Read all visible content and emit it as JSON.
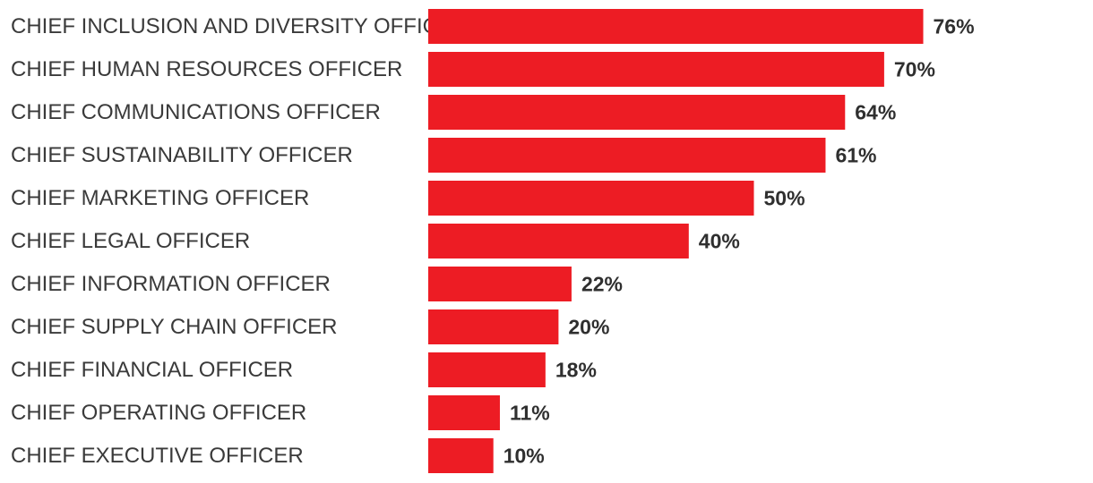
{
  "chart_data": {
    "type": "bar",
    "orientation": "horizontal",
    "categories": [
      "CHIEF INCLUSION AND DIVERSITY OFFICER",
      "CHIEF HUMAN RESOURCES OFFICER",
      "CHIEF COMMUNICATIONS OFFICER",
      "CHIEF SUSTAINABILITY OFFICER",
      "CHIEF MARKETING OFFICER",
      "CHIEF LEGAL OFFICER",
      "CHIEF INFORMATION OFFICER",
      "CHIEF SUPPLY CHAIN OFFICER",
      "CHIEF FINANCIAL OFFICER",
      "CHIEF OPERATING OFFICER",
      "CHIEF EXECUTIVE OFFICER"
    ],
    "values": [
      76,
      70,
      64,
      61,
      50,
      40,
      22,
      20,
      18,
      11,
      10
    ],
    "value_labels": [
      "76%",
      "70%",
      "64%",
      "61%",
      "50%",
      "40%",
      "22%",
      "20%",
      "18%",
      "11%",
      "10%"
    ],
    "title": "",
    "xlabel": "",
    "ylabel": "",
    "grid": false,
    "bar_color": "#ed1c24"
  }
}
